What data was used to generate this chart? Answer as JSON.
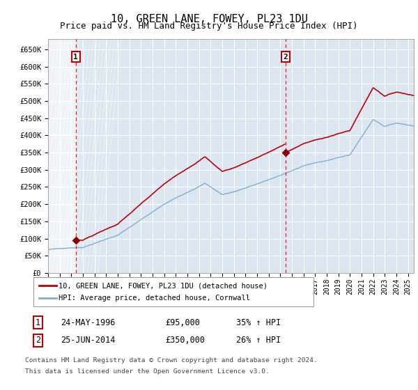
{
  "title": "10, GREEN LANE, FOWEY, PL23 1DU",
  "subtitle": "Price paid vs. HM Land Registry's House Price Index (HPI)",
  "title_fontsize": 11,
  "subtitle_fontsize": 9,
  "ylim": [
    0,
    680000
  ],
  "yticks": [
    0,
    50000,
    100000,
    150000,
    200000,
    250000,
    300000,
    350000,
    400000,
    450000,
    500000,
    550000,
    600000,
    650000
  ],
  "ytick_labels": [
    "£0",
    "£50K",
    "£100K",
    "£150K",
    "£200K",
    "£250K",
    "£300K",
    "£350K",
    "£400K",
    "£450K",
    "£500K",
    "£550K",
    "£600K",
    "£650K"
  ],
  "xlim_start": 1994.0,
  "xlim_end": 2025.5,
  "background_color": "#ffffff",
  "plot_bg_color": "#dce6f1",
  "grid_color": "#ffffff",
  "hpi_line_color": "#7bafd4",
  "price_line_color": "#c00000",
  "vline_color": "#ff0000",
  "marker_color": "#8b0000",
  "sale1_x": 1996.38,
  "sale1_y": 95000,
  "sale2_x": 2014.47,
  "sale2_y": 350000,
  "legend_line1": "10, GREEN LANE, FOWEY, PL23 1DU (detached house)",
  "legend_line2": "HPI: Average price, detached house, Cornwall",
  "footnote_line1": "Contains HM Land Registry data © Crown copyright and database right 2024.",
  "footnote_line2": "This data is licensed under the Open Government Licence v3.0.",
  "table_row1": [
    "1",
    "24-MAY-1996",
    "£95,000",
    "35% ↑ HPI"
  ],
  "table_row2": [
    "2",
    "25-JUN-2014",
    "£350,000",
    "26% ↑ HPI"
  ]
}
